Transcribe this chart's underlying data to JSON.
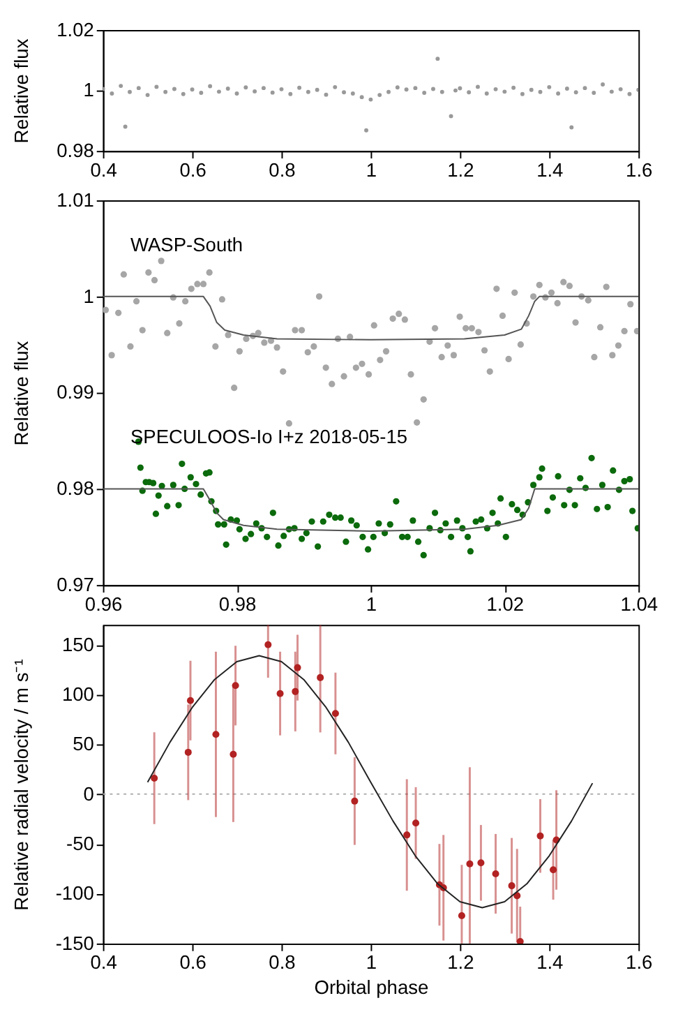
{
  "chart_data": [
    {
      "type": "scatter",
      "ylabel": "Relative flux",
      "xlim": [
        0.4,
        1.6
      ],
      "ylim": [
        0.98,
        1.02
      ],
      "xticks": [
        0.4,
        0.6,
        0.8,
        1,
        1.2,
        1.4,
        1.6
      ],
      "yticks": [
        0.98,
        1,
        1.02
      ],
      "x": [
        0.4,
        0.42,
        0.44,
        0.45,
        0.46,
        0.48,
        0.5,
        0.52,
        0.54,
        0.56,
        0.58,
        0.6,
        0.62,
        0.64,
        0.66,
        0.68,
        0.7,
        0.72,
        0.74,
        0.76,
        0.78,
        0.8,
        0.82,
        0.84,
        0.86,
        0.88,
        0.9,
        0.92,
        0.94,
        0.96,
        0.98,
        0.99,
        1.0,
        1.02,
        1.04,
        1.06,
        1.08,
        1.1,
        1.12,
        1.14,
        1.15,
        1.16,
        1.18,
        1.19,
        1.2,
        1.22,
        1.24,
        1.26,
        1.28,
        1.3,
        1.32,
        1.34,
        1.36,
        1.38,
        1.4,
        1.42,
        1.44,
        1.45,
        1.46,
        1.48,
        1.5,
        1.52,
        1.54,
        1.56,
        1.58,
        1.6
      ],
      "series": [
        {
          "color": "#999999",
          "marker": "circle",
          "values": [
            1.0005,
            0.999,
            1.0015,
            0.988,
            0.9995,
            1.0008,
            0.9985,
            1.0012,
            0.9995,
            1.0005,
            0.9988,
            1.0003,
            0.9992,
            1.0014,
            0.9996,
            1.0006,
            0.999,
            1.001,
            0.9997,
            1.0008,
            0.9993,
            1.0004,
            0.9988,
            1.0009,
            0.9995,
            1.0002,
            0.9986,
            1.0011,
            0.9994,
            0.999,
            0.9978,
            0.9868,
            0.997,
            0.9985,
            0.9995,
            1.001,
            1.0003,
            1.0008,
            0.9992,
            1.0005,
            1.0105,
            0.9995,
            0.9915,
            1.0,
            1.0007,
            0.9994,
            1.0012,
            0.999,
            1.0004,
            0.9996,
            1.0009,
            0.9988,
            1.0002,
            0.9995,
            1.0011,
            0.999,
            1.0006,
            0.9878,
            0.9994,
            1.0008,
            0.9992,
            1.002,
            0.9996,
            1.0004,
            0.9988,
            1.0002
          ]
        }
      ]
    },
    {
      "type": "scatter",
      "ylabel": "Relative flux",
      "xlim": [
        0.96,
        1.04
      ],
      "ylim": [
        0.97,
        1.01
      ],
      "xticks": [
        0.96,
        0.98,
        1,
        1.02,
        1.04
      ],
      "yticks": [
        0.97,
        0.98,
        0.99,
        1,
        1.01
      ],
      "annotations": [
        "WASP-South",
        "SPECULOOS-Io I+z 2018-05-15"
      ],
      "series": [
        {
          "color": "#a6a6a6",
          "marker": "circle",
          "x": [
            0.9604,
            0.9613,
            0.9623,
            0.9631,
            0.9641,
            0.965,
            0.9659,
            0.9668,
            0.9677,
            0.9687,
            0.9696,
            0.9705,
            0.9714,
            0.9723,
            0.9732,
            0.9741,
            0.975,
            0.9759,
            0.9768,
            0.9778,
            0.9787,
            0.9796,
            0.9804,
            0.9814,
            0.9824,
            0.9832,
            0.9841,
            0.9851,
            0.986,
            0.9869,
            0.9878,
            0.9887,
            0.9897,
            0.9906,
            0.9915,
            0.9923,
            0.9933,
            0.9942,
            0.9951,
            0.996,
            0.9969,
            0.9978,
            0.9987,
            0.9997,
            1.0005,
            1.0014,
            1.0023,
            1.0033,
            1.0042,
            1.0051,
            1.006,
            1.0069,
            1.0079,
            1.0088,
            1.0096,
            1.0106,
            1.0115,
            1.0124,
            1.0133,
            1.0142,
            1.0151,
            1.0161,
            1.017,
            1.0178,
            1.0188,
            1.0197,
            1.0206,
            1.0215,
            1.0224,
            1.0233,
            1.0243,
            1.0252,
            1.0261,
            1.027,
            1.0279,
            1.0288,
            1.0297,
            1.0306,
            1.0315,
            1.0325,
            1.0334,
            1.0343,
            1.0352,
            1.0361,
            1.037,
            1.0379,
            1.0388,
            1.0398
          ],
          "values": [
            0.9986,
            0.9939,
            0.9983,
            1.0023,
            0.9948,
            0.9995,
            0.9965,
            1.0025,
            1.0017,
            1.0037,
            0.9962,
            0.9999,
            0.9972,
            0.9995,
            1.0008,
            1.0013,
            1.0013,
            1.0025,
            0.9948,
            0.9997,
            0.996,
            0.9905,
            0.9943,
            0.9956,
            0.9959,
            0.9962,
            0.9952,
            0.9954,
            0.9947,
            0.9922,
            0.9868,
            0.9965,
            0.9965,
            0.9942,
            0.9948,
            1.0,
            0.9926,
            0.9909,
            0.9956,
            0.9917,
            0.9958,
            0.9926,
            0.993,
            0.9919,
            0.997,
            0.9934,
            0.9943,
            0.9977,
            0.9982,
            0.9976,
            0.9919,
            0.9869,
            0.9893,
            0.9953,
            0.9967,
            0.9937,
            0.9949,
            0.9939,
            0.9979,
            0.9967,
            0.9967,
            0.9963,
            0.9944,
            0.9922,
            1.0008,
            0.998,
            0.9935,
            1.0004,
            0.995,
            0.9972,
            1.0,
            1.0012,
            0.9999,
            1.0004,
            0.9993,
            1.0015,
            1.0011,
            0.9973,
            1.0,
            0.9996,
            0.9937,
            0.9968,
            1.001,
            0.9939,
            0.9949,
            0.9964,
            0.9992,
            0.9964
          ]
        },
        {
          "type": "line",
          "color": "#555555",
          "x": [
            0.96,
            0.975,
            0.976,
            0.977,
            0.9782,
            0.981,
            0.986,
            1.0,
            1.014,
            1.02,
            1.0225,
            1.0236,
            1.0245,
            1.0252,
            1.04
          ],
          "values": [
            1.0,
            1.0,
            0.999,
            0.9973,
            0.9965,
            0.996,
            0.9956,
            0.9955,
            0.9956,
            0.996,
            0.9966,
            0.998,
            0.9995,
            1.0,
            1.0
          ]
        },
        {
          "color": "#0b6a0b",
          "marker": "circle",
          "x": [
            0.9653,
            0.9656,
            0.9659,
            0.9664,
            0.9669,
            0.9675,
            0.9679,
            0.9683,
            0.9688,
            0.9696,
            0.9705,
            0.9713,
            0.9718,
            0.9722,
            0.9731,
            0.9739,
            0.9746,
            0.9754,
            0.9759,
            0.9762,
            0.9769,
            0.9772,
            0.9781,
            0.9784,
            0.9791,
            0.98,
            0.9804,
            0.9813,
            0.9821,
            0.9829,
            0.9837,
            0.9845,
            0.9854,
            0.9862,
            0.987,
            0.9878,
            0.9886,
            0.9897,
            0.9904,
            0.9912,
            0.9921,
            0.9929,
            0.9938,
            0.9947,
            0.9955,
            0.9963,
            0.9971,
            0.9979,
            0.9988,
            0.9996,
            1.0004,
            1.0012,
            1.0021,
            1.0029,
            1.0038,
            1.0047,
            1.0055,
            1.0063,
            1.0071,
            1.0079,
            1.0088,
            1.0096,
            1.0104,
            1.0112,
            1.012,
            1.0129,
            1.0137,
            1.0145,
            1.0149,
            1.0157,
            1.0165,
            1.0174,
            1.0182,
            1.019,
            1.0194,
            1.0202,
            1.0211,
            1.0219,
            1.0227,
            1.0235,
            1.0243,
            1.0252,
            1.0256,
            1.0264,
            1.0272,
            1.028,
            1.0289,
            1.0297,
            1.0305,
            1.0313,
            1.0321,
            1.033,
            1.0338,
            1.0346,
            1.0354,
            1.0362,
            1.0371,
            1.0379,
            1.0387,
            1.0391,
            1.0399
          ],
          "values": [
            0.9849,
            0.9822,
            0.9798,
            0.9807,
            0.9807,
            0.9806,
            0.9774,
            0.9793,
            0.9803,
            0.9782,
            0.9804,
            0.9783,
            0.9826,
            0.98,
            0.9812,
            0.9805,
            0.9794,
            0.9816,
            0.9817,
            0.9787,
            0.9777,
            0.9763,
            0.9763,
            0.9742,
            0.9768,
            0.9767,
            0.9758,
            0.9748,
            0.9753,
            0.9764,
            0.9759,
            0.975,
            0.9775,
            0.9741,
            0.9751,
            0.9758,
            0.9759,
            0.9748,
            0.9754,
            0.9766,
            0.974,
            0.9766,
            0.9773,
            0.977,
            0.977,
            0.9745,
            0.9767,
            0.9762,
            0.975,
            0.9737,
            0.975,
            0.9764,
            0.9754,
            0.9763,
            0.9787,
            0.975,
            0.975,
            0.9767,
            0.9745,
            0.9731,
            0.9759,
            0.9775,
            0.9757,
            0.9764,
            0.975,
            0.9767,
            0.9759,
            0.975,
            0.9735,
            0.9766,
            0.9768,
            0.9759,
            0.9775,
            0.9764,
            0.979,
            0.975,
            0.9784,
            0.9778,
            0.9773,
            0.9786,
            0.9804,
            0.9812,
            0.9821,
            0.9777,
            0.9791,
            0.9813,
            0.9783,
            0.9799,
            0.9783,
            0.9811,
            0.9801,
            0.9832,
            0.9779,
            0.9804,
            0.9781,
            0.9819,
            0.9799,
            0.9808,
            0.981,
            0.9777,
            0.9759
          ]
        },
        {
          "type": "line",
          "color": "#555555",
          "x": [
            0.96,
            0.975,
            0.976,
            0.977,
            0.978,
            0.981,
            0.986,
            1.0,
            1.014,
            1.019,
            1.0225,
            1.0236,
            1.0245,
            1.04
          ],
          "values": [
            0.98,
            0.98,
            0.9788,
            0.9775,
            0.9768,
            0.9762,
            0.9758,
            0.9756,
            0.9758,
            0.9762,
            0.9768,
            0.978,
            0.98,
            0.98
          ]
        }
      ]
    },
    {
      "type": "scatter",
      "xlabel": "Orbital phase",
      "ylabel": "Relative radial velocity / m s⁻¹",
      "xlim": [
        0.4,
        1.6
      ],
      "ylim": [
        -150,
        170
      ],
      "xticks": [
        0.4,
        0.6,
        0.8,
        1,
        1.2,
        1.4,
        1.6
      ],
      "yticks": [
        -150,
        -100,
        -50,
        0,
        50,
        100,
        150
      ],
      "ref_lines": [
        {
          "axis": "y",
          "value": 0,
          "color": "#b0b0b0",
          "line_style": "dotted"
        }
      ],
      "series": [
        {
          "color": "#b22222",
          "marker": "circle",
          "x": [
            0.515,
            0.591,
            0.596,
            0.653,
            0.692,
            0.697,
            0.77,
            0.797,
            0.831,
            0.836,
            0.887,
            0.921,
            0.964,
            1.081,
            1.101,
            1.154,
            1.163,
            1.204,
            1.222,
            1.247,
            1.28,
            1.316,
            1.328,
            1.335,
            1.38,
            1.409,
            1.416
          ],
          "values": [
            16,
            42,
            94,
            60,
            40,
            109,
            150,
            101,
            103,
            127,
            117,
            81,
            -7,
            -41,
            -29,
            -91,
            -94,
            -122,
            -70,
            -69,
            -80,
            -92,
            -102,
            -148,
            -42,
            -76,
            -46
          ],
          "errors": [
            [
              -30,
              62
            ],
            [
              -6,
              90
            ],
            [
              54,
              134
            ],
            [
              -23,
              143
            ],
            [
              -28,
              108
            ],
            [
              69,
              149
            ],
            [
              117,
              170
            ],
            [
              59,
              143
            ],
            [
              63,
              143
            ],
            [
              94,
              160
            ],
            [
              62,
              170
            ],
            [
              40,
              122
            ],
            [
              -51,
              37
            ],
            [
              -97,
              15
            ],
            [
              -65,
              7
            ],
            [
              -132,
              -50
            ],
            [
              -147,
              -41
            ],
            [
              -150,
              -71
            ],
            [
              -150,
              27
            ],
            [
              -107,
              -31
            ],
            [
              -120,
              -40
            ],
            [
              -140,
              -44
            ],
            [
              -149,
              -55
            ],
            [
              -150,
              -113
            ],
            [
              -79,
              -5
            ],
            [
              -106,
              -46
            ],
            [
              -96,
              4
            ]
          ]
        },
        {
          "type": "line",
          "color": "#222222",
          "x": [
            0.5,
            0.55,
            0.6,
            0.65,
            0.7,
            0.75,
            0.8,
            0.85,
            0.9,
            0.95,
            1.0,
            1.05,
            1.1,
            1.15,
            1.2,
            1.25,
            1.3,
            1.35,
            1.4,
            1.45,
            1.497
          ],
          "values": [
            12,
            52,
            87,
            115,
            133,
            139,
            133,
            115,
            87,
            52,
            12,
            -27,
            -62,
            -90,
            -108,
            -114,
            -108,
            -90,
            -62,
            -27,
            11
          ]
        }
      ]
    }
  ]
}
